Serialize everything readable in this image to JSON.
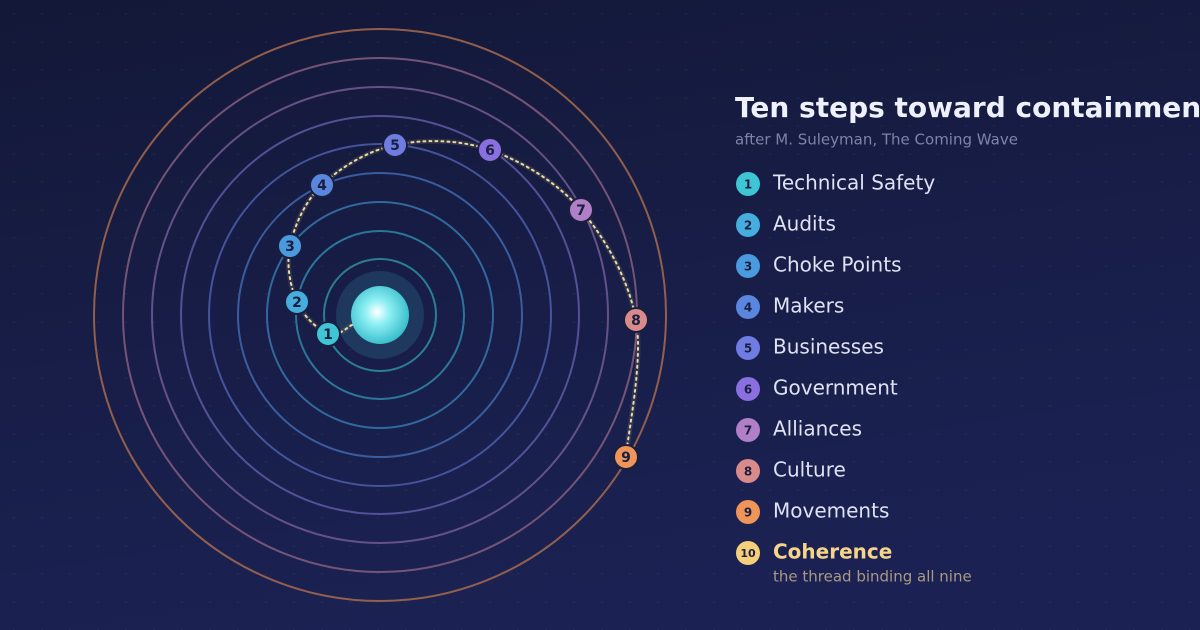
{
  "header": {
    "title": "Ten steps toward containment",
    "subtitle": "after M. Suleyman, The Coming Wave"
  },
  "steps": [
    {
      "number": "1",
      "label": "Technical Safety"
    },
    {
      "number": "2",
      "label": "Audits"
    },
    {
      "number": "3",
      "label": "Choke Points"
    },
    {
      "number": "4",
      "label": "Makers"
    },
    {
      "number": "5",
      "label": "Businesses"
    },
    {
      "number": "6",
      "label": "Government"
    },
    {
      "number": "7",
      "label": "Alliances"
    },
    {
      "number": "8",
      "label": "Culture"
    },
    {
      "number": "9",
      "label": "Movements"
    },
    {
      "number": "10",
      "label": "Coherence",
      "note": "the thread binding all nine"
    }
  ]
}
